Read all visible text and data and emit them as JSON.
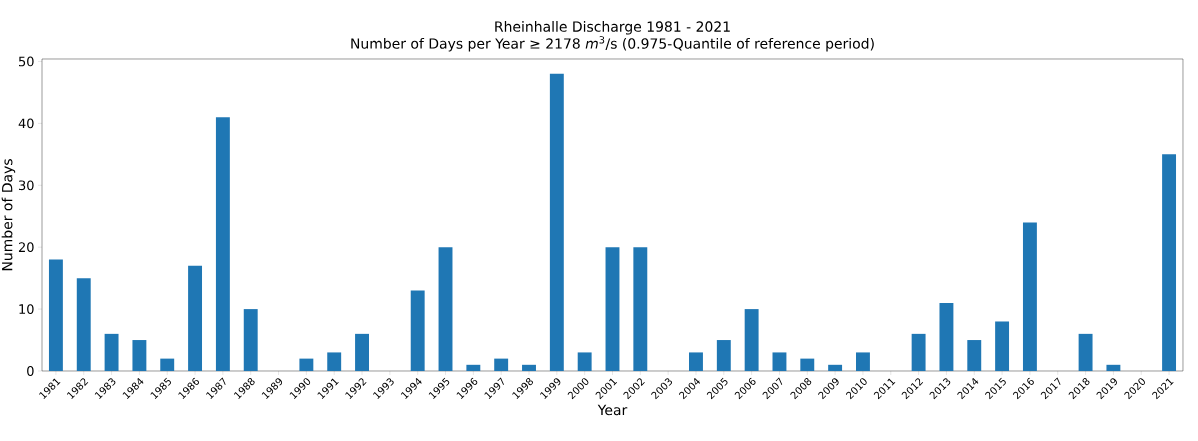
{
  "chart_data": {
    "type": "bar",
    "title": "Rheinhalle Discharge 1981 - 2021",
    "subtitle": "Number of Days per Year ≥ 2178 *m*$^{3}$/s (0.975-Quantile of reference period)",
    "xlabel": "Year",
    "ylabel": "Number of Days",
    "categories": [
      "1981",
      "1982",
      "1983",
      "1984",
      "1985",
      "1986",
      "1987",
      "1988",
      "1989",
      "1990",
      "1991",
      "1992",
      "1993",
      "1994",
      "1995",
      "1996",
      "1997",
      "1998",
      "1999",
      "2000",
      "2001",
      "2002",
      "2003",
      "2004",
      "2005",
      "2006",
      "2007",
      "2008",
      "2009",
      "2010",
      "2011",
      "2012",
      "2013",
      "2014",
      "2015",
      "2016",
      "2017",
      "2018",
      "2019",
      "2020",
      "2021"
    ],
    "values": [
      18,
      15,
      6,
      5,
      2,
      17,
      41,
      10,
      0,
      2,
      3,
      6,
      0,
      13,
      20,
      1,
      2,
      1,
      48,
      3,
      20,
      20,
      0,
      3,
      5,
      10,
      3,
      2,
      1,
      3,
      0,
      6,
      11,
      5,
      8,
      24,
      0,
      6,
      1,
      0,
      35
    ],
    "color": "#1f77b4",
    "ylim": [
      0,
      50.4
    ],
    "yticks": [
      0,
      10,
      20,
      30,
      40,
      50
    ]
  }
}
